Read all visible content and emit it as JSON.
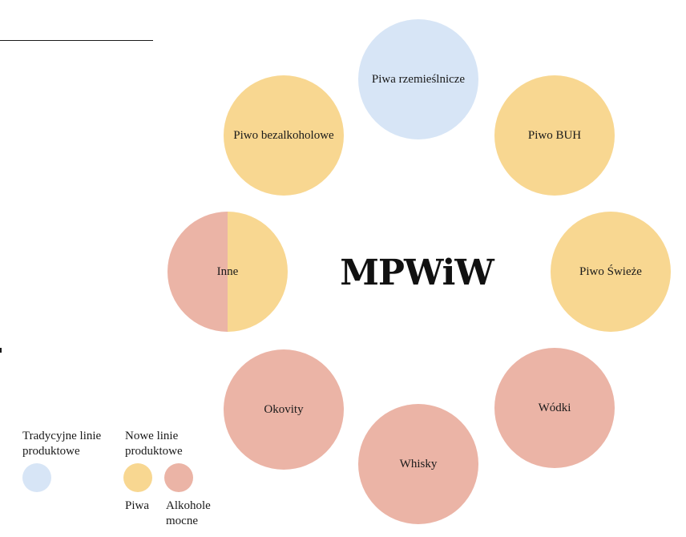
{
  "colors": {
    "tradycyjne": "#d7e5f6",
    "piwa": "#f8d791",
    "alkohole": "#ebb4a6"
  },
  "center_title": "MPWiW",
  "nodes": [
    {
      "label": "Piwa rzemieślnicze",
      "category": "tradycyjne"
    },
    {
      "label": "Piwo BUH",
      "category": "piwa"
    },
    {
      "label": "Piwo Świeże",
      "category": "piwa"
    },
    {
      "label": "Wódki",
      "category": "alkohole"
    },
    {
      "label": "Whisky",
      "category": "alkohole"
    },
    {
      "label": "Okovity",
      "category": "alkohole"
    },
    {
      "label": "Inne",
      "category": "mixed",
      "left": "alkohole",
      "right": "piwa"
    },
    {
      "label": "Piwo bezalkoholowe",
      "category": "piwa"
    }
  ],
  "legend": {
    "tradycyjne_heading": "Tradycyjne linie\nproduktowe",
    "nowe_heading": "Nowe linie\nproduktowe",
    "piwa_label": "Piwa",
    "alkohole_label": "Alkohole\nmocne"
  }
}
